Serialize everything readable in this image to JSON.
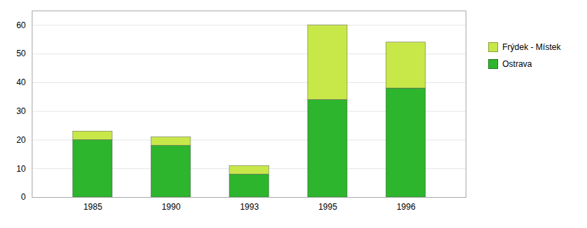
{
  "chart_data": {
    "type": "bar",
    "categories": [
      "1985",
      "1990",
      "1993",
      "1995",
      "1996"
    ],
    "series": [
      {
        "name": "Ostrava",
        "color": "#2db52d",
        "values": [
          20,
          18,
          8,
          34,
          38
        ]
      },
      {
        "name": "Frýdek - Místek",
        "color": "#c8e84a",
        "values": [
          3,
          3,
          3,
          26,
          16
        ]
      }
    ],
    "stacked": true,
    "ylim": [
      0,
      65
    ],
    "yticks": [
      0,
      10,
      20,
      30,
      40,
      50,
      60
    ],
    "grid": true,
    "legend": "right"
  }
}
